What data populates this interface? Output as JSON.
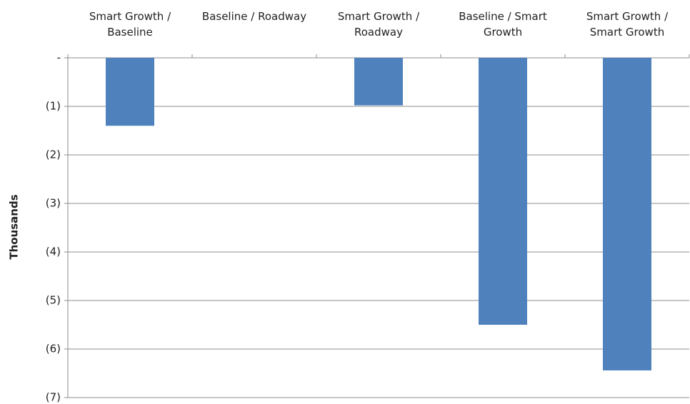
{
  "chart_data": {
    "type": "bar",
    "y_axis_label": "Thousands",
    "categories": [
      "Smart Growth / Baseline",
      "Baseline / Roadway",
      "Smart Growth / Roadway",
      "Baseline / Smart Growth",
      "Smart Growth / Smart Growth"
    ],
    "values": [
      -1.4,
      0,
      -0.98,
      -5.5,
      -6.44
    ],
    "color": "#4f81bd",
    "ylim": [
      -7,
      0
    ],
    "yticks": [
      {
        "value": 0,
        "label": "-"
      },
      {
        "value": -1,
        "label": "(1)"
      },
      {
        "value": -2,
        "label": "(2)"
      },
      {
        "value": -3,
        "label": "(3)"
      },
      {
        "value": -4,
        "label": "(4)"
      },
      {
        "value": -5,
        "label": "(5)"
      },
      {
        "value": -6,
        "label": "(6)"
      },
      {
        "value": -7,
        "label": "(7)"
      }
    ],
    "grid": true
  }
}
